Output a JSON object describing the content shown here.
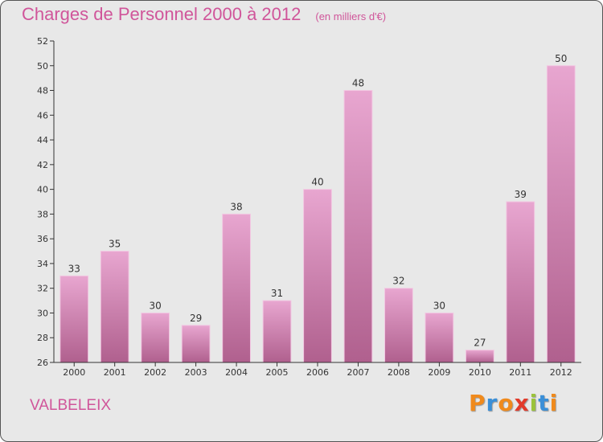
{
  "chart_data": {
    "type": "bar",
    "title": "Charges de Personnel 2000 à 2012",
    "subtitle": "(en milliers d'€)",
    "categories": [
      "2000",
      "2001",
      "2002",
      "2003",
      "2004",
      "2005",
      "2006",
      "2007",
      "2008",
      "2009",
      "2010",
      "2011",
      "2012"
    ],
    "values": [
      33,
      35,
      30,
      29,
      38,
      31,
      40,
      48,
      32,
      30,
      27,
      39,
      50
    ],
    "data_labels": [
      "33",
      "35",
      "30",
      "29",
      "38",
      "31",
      "40",
      "48",
      "32",
      "30",
      "27",
      "39",
      "50"
    ],
    "ylim": [
      26,
      52
    ],
    "yticks": [
      26,
      28,
      30,
      32,
      34,
      36,
      38,
      40,
      42,
      44,
      46,
      48,
      50,
      52
    ],
    "xlabel": "",
    "ylabel": "",
    "grid": false,
    "legend": "none",
    "colors": {
      "bar_top": "#e8a6d0",
      "bar_bottom": "#b0608e",
      "axis": "#333333",
      "text": "#333333"
    }
  },
  "commune": "VALBELEIX",
  "logo": {
    "text": "Proxiti",
    "letters": [
      {
        "char": "P",
        "color": "#f08a1c"
      },
      {
        "char": "r",
        "color": "#3a8fd8"
      },
      {
        "char": "o",
        "color": "#f08a1c"
      },
      {
        "char": "x",
        "color": "#e23a2a"
      },
      {
        "char": "i",
        "color": "#9bc33b"
      },
      {
        "char": "t",
        "color": "#3a8fd8"
      },
      {
        "char": "i",
        "color": "#f08a1c"
      }
    ]
  }
}
